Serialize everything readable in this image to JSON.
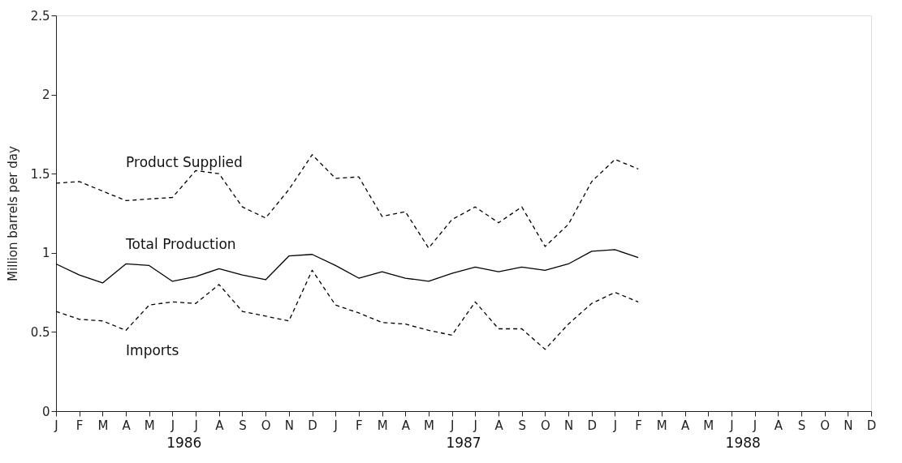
{
  "chart_data": {
    "type": "line",
    "ylabel": "Million barrels per day",
    "categories": [
      "J",
      "F",
      "M",
      "A",
      "M",
      "J",
      "J",
      "A",
      "S",
      "O",
      "N",
      "D",
      "J",
      "F",
      "M",
      "A",
      "M",
      "J",
      "J",
      "A",
      "S",
      "O",
      "N",
      "D",
      "J",
      "F",
      "M",
      "A",
      "M",
      "J",
      "J",
      "A",
      "S",
      "O",
      "N",
      "D"
    ],
    "series": [
      {
        "name": "Product Supplied",
        "color": "#000000",
        "line_style": "dashed",
        "values": [
          1.44,
          1.45,
          1.39,
          1.33,
          1.34,
          1.35,
          1.52,
          1.5,
          1.29,
          1.22,
          1.4,
          1.62,
          1.47,
          1.48,
          1.23,
          1.26,
          1.03,
          1.21,
          1.29,
          1.19,
          1.29,
          1.04,
          1.18,
          1.45,
          1.59,
          1.53,
          null,
          null,
          null,
          null,
          null,
          null,
          null,
          null,
          null,
          null
        ]
      },
      {
        "name": "Total Production",
        "color": "#000000",
        "line_style": "solid",
        "values": [
          0.93,
          0.86,
          0.81,
          0.93,
          0.92,
          0.82,
          0.85,
          0.9,
          0.86,
          0.83,
          0.98,
          0.99,
          0.92,
          0.84,
          0.88,
          0.84,
          0.82,
          0.87,
          0.91,
          0.88,
          0.91,
          0.89,
          0.93,
          1.01,
          1.02,
          0.97,
          null,
          null,
          null,
          null,
          null,
          null,
          null,
          null,
          null,
          null
        ]
      },
      {
        "name": "Imports",
        "color": "#000000",
        "line_style": "dashed",
        "values": [
          0.63,
          0.58,
          0.57,
          0.51,
          0.67,
          0.69,
          0.68,
          0.8,
          0.63,
          0.6,
          0.57,
          0.89,
          0.67,
          0.62,
          0.56,
          0.55,
          0.51,
          0.48,
          0.69,
          0.52,
          0.52,
          0.39,
          0.55,
          0.68,
          0.75,
          0.69,
          null,
          null,
          null,
          null,
          null,
          null,
          null,
          null,
          null,
          null
        ]
      }
    ],
    "annotations": [
      "1986",
      "1987",
      "1988"
    ],
    "ylim": [
      0,
      2.5
    ],
    "yticks": [
      0,
      0.5,
      1,
      1.5,
      2,
      2.5
    ],
    "grid": false,
    "marker": "none"
  }
}
